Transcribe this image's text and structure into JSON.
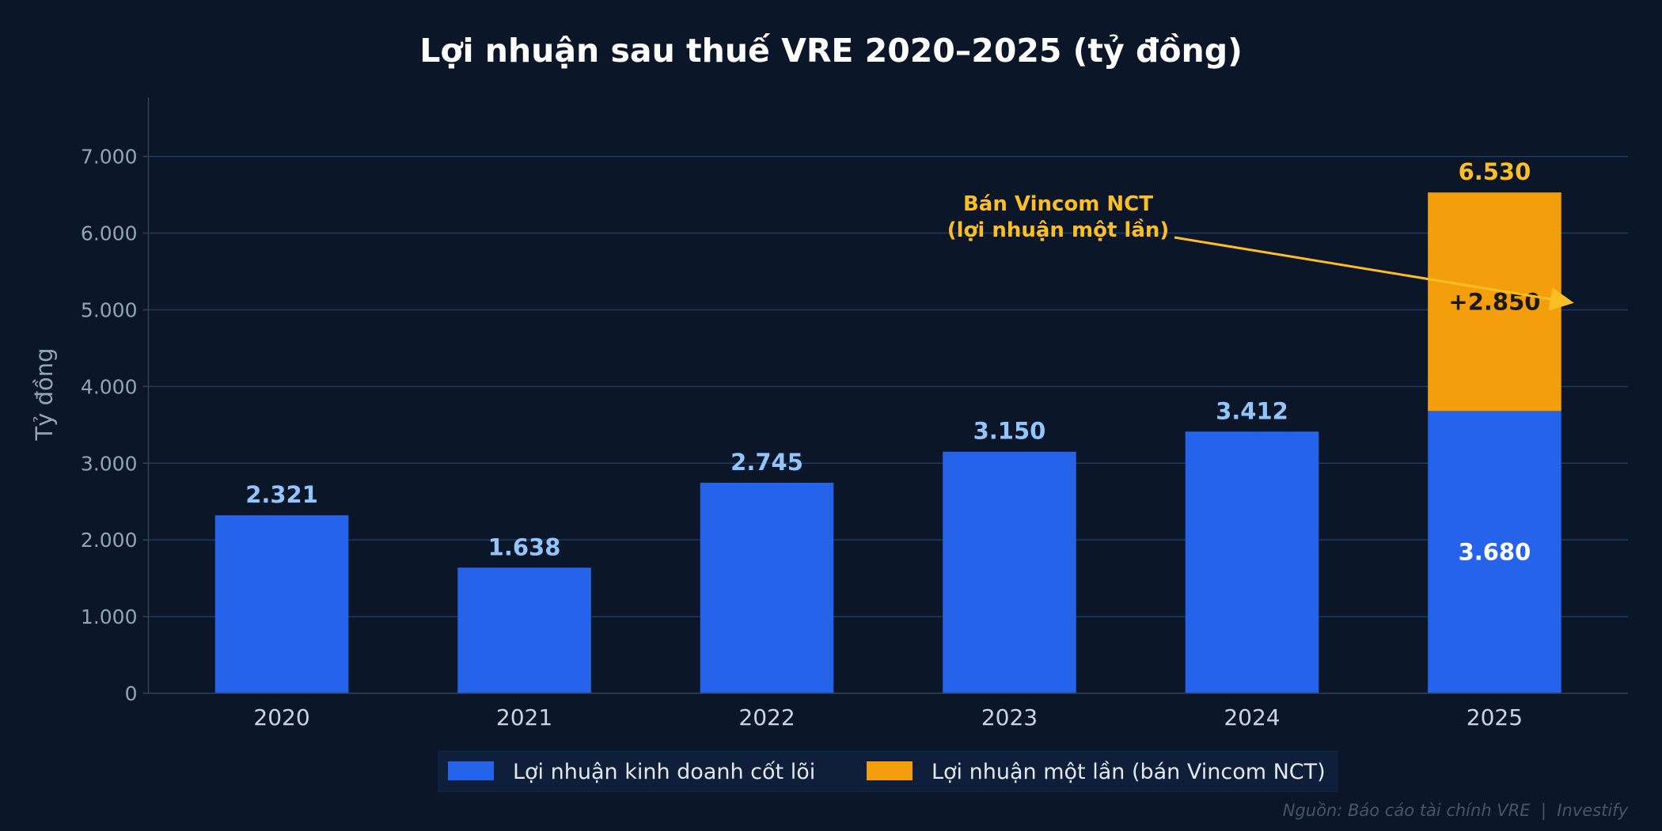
{
  "chart_data": {
    "type": "bar",
    "stacked": true,
    "title": "Lợi nhuận sau thuế VRE 2020–2025 (tỷ đồng)",
    "xlabel": "",
    "ylabel": "Tỷ đồng",
    "categories": [
      "2020",
      "2021",
      "2022",
      "2023",
      "2024",
      "2025"
    ],
    "series": [
      {
        "name": "Lợi nhuận kinh doanh cốt lõi",
        "color": "#2563eb",
        "values": [
          2321,
          1638,
          2745,
          3150,
          3412,
          3680
        ]
      },
      {
        "name": "Lợi nhuận một lần (bán Vincom NCT)",
        "color": "#f59e0b",
        "values": [
          0,
          0,
          0,
          0,
          0,
          2850
        ]
      }
    ],
    "data_labels": [
      "2.321",
      "1.638",
      "2.745",
      "3.150",
      "3.412",
      "6.530"
    ],
    "inner_labels": {
      "core_2025": "3.680",
      "one_time_2025": "+2.850"
    },
    "ylim": [
      0,
      7770
    ],
    "yticks": [
      0,
      1000,
      2000,
      3000,
      4000,
      5000,
      6000,
      7000
    ],
    "ytick_labels": [
      "0",
      "1.000",
      "2.000",
      "3.000",
      "4.000",
      "5.000",
      "6.000",
      "7.000"
    ],
    "grid": true,
    "legend_placement": "bottom-center",
    "annotation": {
      "lines": [
        "Bán Vincom NCT",
        "(lợi nhuận một lần)"
      ],
      "target_category": "2025",
      "target_value": 5100
    },
    "colors": {
      "background": "#0b1628",
      "grid": "#1e3a5f",
      "label_blue": "#93c5fd",
      "label_yellow": "#fbbf24"
    }
  },
  "footer": {
    "source": "Nguồn: Báo cáo tài chính VRE  |  Investify"
  }
}
